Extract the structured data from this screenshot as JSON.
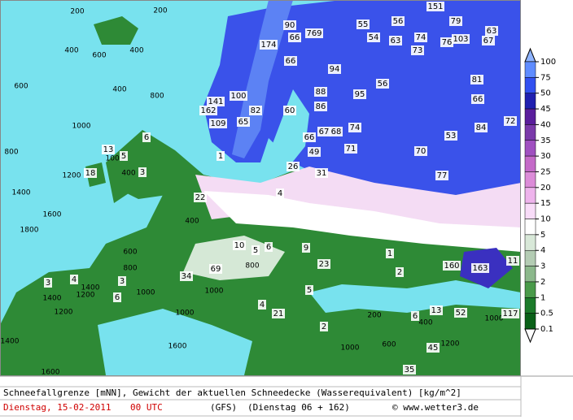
{
  "map": {
    "depth_labels": [
      "151",
      "56",
      "79",
      "55",
      "90",
      "769",
      "54",
      "63",
      "74",
      "76",
      "103",
      "63",
      "67",
      "174",
      "66",
      "73",
      "66",
      "94",
      "56",
      "81",
      "141",
      "100",
      "88",
      "95",
      "66",
      "162",
      "82",
      "60",
      "86",
      "109",
      "65",
      "67",
      "68",
      "74",
      "72",
      "84",
      "66",
      "71",
      "70",
      "53",
      "49",
      "26",
      "31",
      "77",
      "1",
      "6",
      "13",
      "5",
      "18",
      "3",
      "22",
      "4",
      "1",
      "2",
      "160",
      "163",
      "11",
      "10",
      "5",
      "6",
      "9",
      "23",
      "69",
      "34",
      "3",
      "4",
      "3",
      "5",
      "6",
      "4",
      "21",
      "2",
      "6",
      "13",
      "52",
      "45",
      "35",
      "117"
    ],
    "contour_labels": [
      "200",
      "200",
      "400",
      "600",
      "400",
      "800",
      "400",
      "600",
      "1000",
      "800",
      "1200",
      "1400",
      "1600",
      "1800",
      "1000",
      "400",
      "400",
      "600",
      "800",
      "1000",
      "1200",
      "1400",
      "1400",
      "1200",
      "1000",
      "1400",
      "1600",
      "1600",
      "1000",
      "800",
      "200",
      "600",
      "1000",
      "1200",
      "400",
      "1000"
    ]
  },
  "legend": {
    "levels": [
      100,
      75,
      50,
      45,
      40,
      35,
      30,
      25,
      20,
      15,
      10,
      5,
      4,
      3,
      2,
      1,
      0.5,
      0.1
    ],
    "colors": [
      "#8fb4ff",
      "#5f8cff",
      "#3250f0",
      "#2020b0",
      "#5a1e9c",
      "#7a3aaa",
      "#a050c0",
      "#c46ac8",
      "#dc8cd8",
      "#eeb4ec",
      "#f8dcf8",
      "#ffffff",
      "#d8e8d8",
      "#b4ccb4",
      "#8cb88c",
      "#4a9a4a",
      "#1c7a2a",
      "#0a6018",
      "#ffffff"
    ]
  },
  "footer": {
    "description": "Schneefallgrenze [mNN], Gewicht der aktuellen Schneedecke (Wasserequivalent) [kg/m^2]",
    "date": "Dienstag, 15-02-2011",
    "time": "00 UTC",
    "model": "(GFS)",
    "run": "(Dienstag 06 + 162)",
    "credit": "© www.wetter3.de"
  }
}
